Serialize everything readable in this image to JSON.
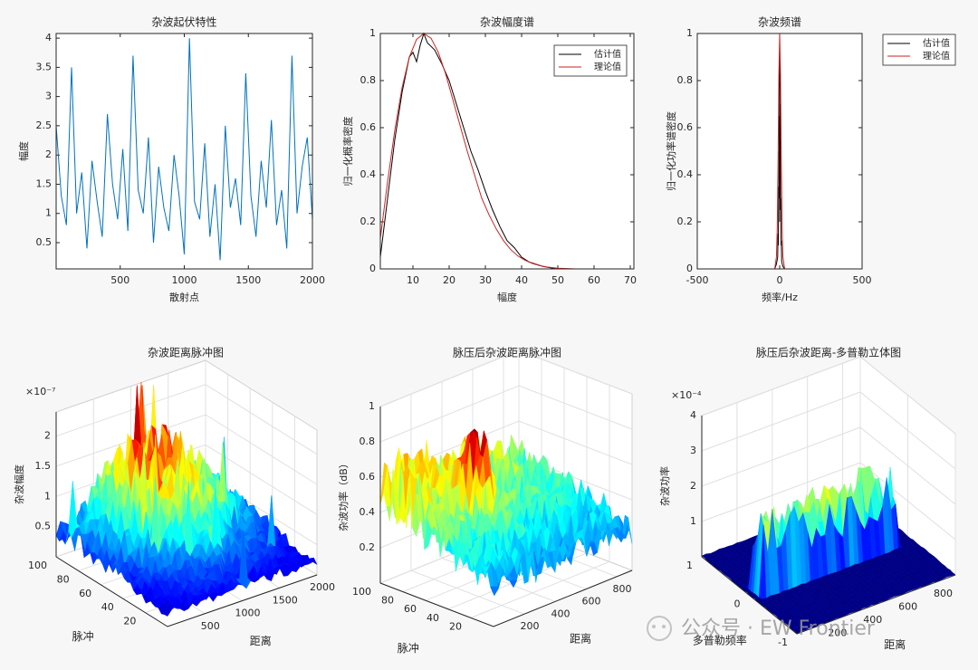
{
  "chart_data": [
    {
      "type": "line",
      "title": "杂波起伏特性",
      "xlabel": "散射点",
      "ylabel": "幅度",
      "xlim": [
        0,
        2000
      ],
      "ylim": [
        0.05,
        4.08
      ],
      "xticks": [
        500,
        1000,
        1500,
        2000
      ],
      "yticks": [
        0.5,
        1,
        1.5,
        2,
        2.5,
        3,
        3.5,
        4
      ],
      "series": [
        {
          "color": "#0072bd",
          "x": [
            0,
            40,
            80,
            120,
            160,
            200,
            240,
            280,
            320,
            360,
            400,
            440,
            480,
            520,
            560,
            600,
            640,
            680,
            720,
            760,
            800,
            840,
            880,
            920,
            960,
            1000,
            1040,
            1080,
            1120,
            1160,
            1200,
            1240,
            1280,
            1320,
            1360,
            1400,
            1440,
            1480,
            1520,
            1560,
            1600,
            1640,
            1680,
            1720,
            1760,
            1800,
            1840,
            1880,
            1920,
            1960,
            2000
          ],
          "values": [
            2.5,
            1.3,
            0.8,
            3.5,
            1.0,
            1.7,
            0.4,
            1.9,
            1.2,
            0.6,
            2.7,
            1.5,
            0.9,
            2.1,
            0.7,
            3.7,
            1.4,
            1.0,
            2.3,
            0.5,
            1.8,
            1.1,
            0.7,
            2.0,
            1.3,
            0.3,
            4.0,
            1.2,
            0.9,
            2.2,
            0.6,
            1.5,
            0.2,
            2.5,
            1.1,
            1.6,
            0.8,
            3.4,
            1.3,
            0.6,
            1.9,
            1.1,
            2.6,
            0.8,
            1.4,
            0.4,
            3.7,
            1.0,
            1.8,
            2.3,
            0.9
          ]
        }
      ]
    },
    {
      "type": "line",
      "title": "杂波幅度谱",
      "xlabel": "幅度",
      "ylabel": "归一化概率密度",
      "xlim": [
        1,
        71
      ],
      "ylim": [
        0,
        1
      ],
      "xticks": [
        10,
        20,
        30,
        40,
        50,
        60,
        70
      ],
      "yticks": [
        0,
        0.2,
        0.4,
        0.6,
        0.8,
        1
      ],
      "series": [
        {
          "name": "估计值",
          "color": "#000000",
          "x": [
            1,
            3,
            5,
            7,
            9,
            10,
            11,
            12,
            13,
            14,
            16,
            18,
            20,
            22,
            24,
            26,
            28,
            30,
            32,
            34,
            36,
            38,
            40,
            42,
            44,
            46,
            48,
            50,
            60,
            70
          ],
          "values": [
            0.05,
            0.3,
            0.55,
            0.75,
            0.9,
            0.92,
            0.88,
            0.95,
            1,
            0.96,
            0.93,
            0.87,
            0.8,
            0.7,
            0.6,
            0.5,
            0.42,
            0.33,
            0.25,
            0.18,
            0.12,
            0.09,
            0.05,
            0.03,
            0.02,
            0.01,
            0.005,
            0,
            0,
            0
          ]
        },
        {
          "name": "理论值",
          "color": "#cc2222",
          "x": [
            1,
            3,
            5,
            7,
            9,
            11,
            13,
            15,
            17,
            19,
            21,
            23,
            25,
            27,
            29,
            31,
            33,
            35,
            37,
            39,
            41,
            43,
            45,
            47,
            50,
            55,
            60,
            70
          ],
          "values": [
            0.13,
            0.37,
            0.59,
            0.77,
            0.9,
            0.975,
            1,
            0.98,
            0.92,
            0.83,
            0.72,
            0.61,
            0.5,
            0.4,
            0.3,
            0.23,
            0.17,
            0.12,
            0.082,
            0.055,
            0.036,
            0.023,
            0.014,
            0.008,
            0.003,
            0,
            0,
            0
          ]
        }
      ]
    },
    {
      "type": "line",
      "title": "杂波频谱",
      "xlabel": "频率/Hz",
      "ylabel": "归一化功率谱密度",
      "xlim": [
        -500,
        500
      ],
      "ylim": [
        0,
        1
      ],
      "xticks": [
        -500,
        0,
        500
      ],
      "yticks": [
        0,
        0.2,
        0.4,
        0.6,
        0.8,
        1
      ],
      "series": [
        {
          "name": "估计值",
          "color": "#000000",
          "x": [
            -500,
            -30,
            -20,
            -12,
            -10,
            -8,
            -6,
            -5,
            -4,
            -3,
            -2,
            -1,
            0,
            1,
            2,
            3,
            4,
            5,
            6,
            8,
            10,
            12,
            20,
            30,
            500
          ],
          "values": [
            0,
            0,
            0.02,
            0.05,
            0.15,
            0.1,
            0.35,
            0.2,
            0.5,
            0.3,
            0.65,
            0.4,
            0.98,
            0.45,
            0.7,
            0.25,
            0.55,
            0.2,
            0.3,
            0.1,
            0.12,
            0.03,
            0.01,
            0,
            0
          ]
        },
        {
          "name": "理论值",
          "color": "#cc2222",
          "x": [
            -500,
            -50,
            -30,
            -20,
            -15,
            -10,
            -5,
            0,
            5,
            10,
            15,
            20,
            30,
            50,
            500
          ],
          "values": [
            0,
            0,
            0,
            0.05,
            0.17,
            0.45,
            0.82,
            1,
            0.82,
            0.45,
            0.17,
            0.05,
            0,
            0,
            0
          ]
        }
      ]
    },
    {
      "type": "surface3d",
      "title": "杂波距离脉冲图",
      "xlabel": "距离",
      "ylabel": "脉冲",
      "zlabel": "杂波幅度",
      "z_exponent": "×10⁻⁷",
      "xlim": [
        0,
        2000
      ],
      "xticks": [
        500,
        1000,
        1500,
        2000
      ],
      "ylim": [
        0,
        100
      ],
      "yticks": [
        20,
        40,
        60,
        80,
        100
      ],
      "zlim": [
        0,
        2.4
      ],
      "zticks": [
        0.5,
        1,
        1.5,
        2
      ]
    },
    {
      "type": "surface3d",
      "title": "脉压后杂波距离脉冲图",
      "xlabel": "距离",
      "ylabel": "脉冲",
      "zlabel": "杂波功率（dB）",
      "xlim": [
        0,
        900
      ],
      "xticks": [
        200,
        400,
        600,
        800
      ],
      "ylim": [
        0,
        100
      ],
      "yticks": [
        20,
        40,
        60,
        80,
        100
      ],
      "zlim": [
        0,
        1
      ],
      "zticks": [
        0.2,
        0.4,
        0.6,
        0.8,
        1
      ]
    },
    {
      "type": "surface3d",
      "title": "脉压后杂波距离-多普勒立体图",
      "xlabel": "距离",
      "ylabel": "多普勒频率",
      "zlabel": "杂波功率",
      "z_exponent": "×10⁻⁴",
      "xlim": [
        0,
        900
      ],
      "xticks": [
        200,
        400,
        600,
        800
      ],
      "ylim": [
        -1,
        1
      ],
      "yticks": [
        -1,
        0,
        1
      ],
      "zlim": [
        0,
        4
      ],
      "zticks": [
        1,
        2,
        3,
        4
      ]
    }
  ],
  "watermark": "公众号 · EW Frontier"
}
